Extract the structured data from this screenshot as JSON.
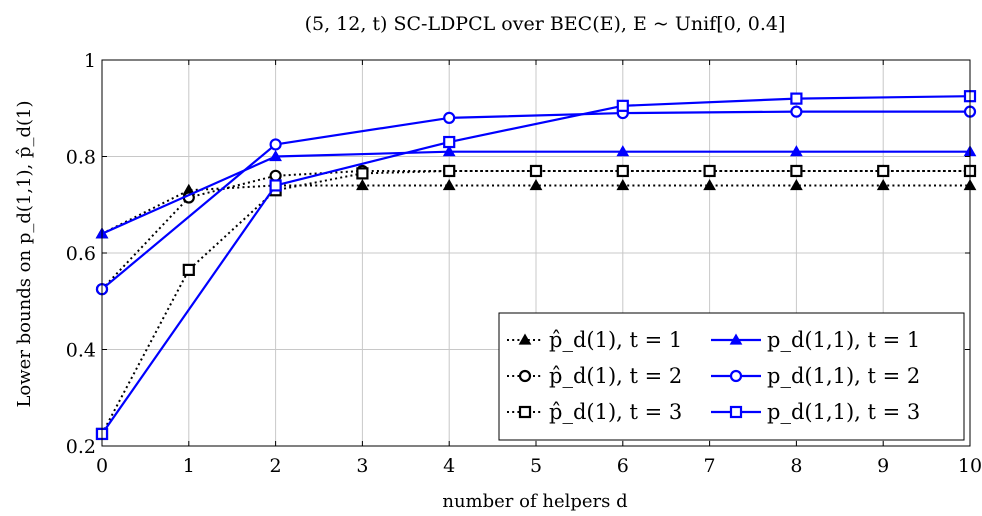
{
  "chart_data": {
    "type": "line",
    "title": "(5, 12, t) SC-LDPCL over BEC(E), E ~ Unif[0, 0.4]",
    "xlabel": "number of helpers d",
    "ylabel": "Lower bounds on p_d(1,1), p̂_d(1)",
    "xlim": [
      0,
      10
    ],
    "ylim": [
      0.2,
      1
    ],
    "xticks": [
      "0",
      "1",
      "2",
      "3",
      "4",
      "5",
      "6",
      "7",
      "8",
      "9",
      "10"
    ],
    "yticks": [
      "0.2",
      "0.4",
      "0.6",
      "0.8",
      "1"
    ],
    "grid": true,
    "legend_position": "bottom-right",
    "x": [
      0,
      1,
      2,
      3,
      4,
      5,
      6,
      7,
      8,
      9,
      10
    ],
    "series": [
      {
        "name": "p̂_d(1), t = 1",
        "style": "dotted",
        "color": "#000000",
        "marker": "triangle",
        "x": [
          0,
          1,
          2,
          3,
          4,
          5,
          6,
          7,
          8,
          9,
          10
        ],
        "values": [
          0.64,
          0.73,
          0.74,
          0.74,
          0.74,
          0.74,
          0.74,
          0.74,
          0.74,
          0.74,
          0.74
        ]
      },
      {
        "name": "p̂_d(1), t = 2",
        "style": "dotted",
        "color": "#000000",
        "marker": "circle",
        "x": [
          0,
          1,
          2,
          3,
          4,
          5,
          6,
          7,
          8,
          9,
          10
        ],
        "values": [
          0.525,
          0.715,
          0.76,
          0.77,
          0.77,
          0.77,
          0.77,
          0.77,
          0.77,
          0.77,
          0.77
        ]
      },
      {
        "name": "p̂_d(1), t = 3",
        "style": "dotted",
        "color": "#000000",
        "marker": "square",
        "x": [
          0,
          1,
          2,
          3,
          4,
          5,
          6,
          7,
          8,
          9,
          10
        ],
        "values": [
          0.225,
          0.565,
          0.73,
          0.765,
          0.77,
          0.77,
          0.77,
          0.77,
          0.77,
          0.77,
          0.77
        ]
      },
      {
        "name": "p_d(1,1), t = 1",
        "style": "solid",
        "color": "#0000ff",
        "marker": "triangle",
        "x": [
          0,
          2,
          4,
          6,
          8,
          10
        ],
        "values": [
          0.64,
          0.8,
          0.81,
          0.81,
          0.81,
          0.81
        ]
      },
      {
        "name": "p_d(1,1), t = 2",
        "style": "solid",
        "color": "#0000ff",
        "marker": "circle",
        "x": [
          0,
          2,
          4,
          6,
          8,
          10
        ],
        "values": [
          0.525,
          0.825,
          0.88,
          0.89,
          0.893,
          0.893
        ]
      },
      {
        "name": "p_d(1,1), t = 3",
        "style": "solid",
        "color": "#0000ff",
        "marker": "square",
        "x": [
          0,
          2,
          4,
          6,
          8,
          10
        ],
        "values": [
          0.225,
          0.74,
          0.83,
          0.905,
          0.92,
          0.925
        ]
      }
    ]
  }
}
